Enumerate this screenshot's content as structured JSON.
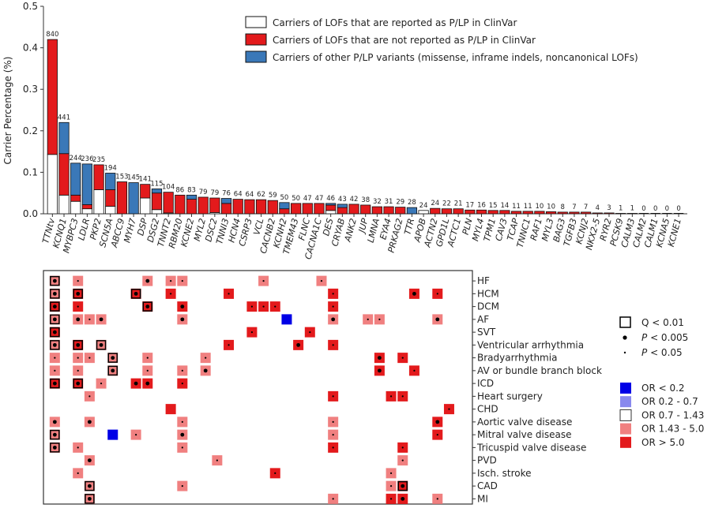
{
  "chart_data": [
    {
      "type": "bar",
      "stacked": true,
      "ylabel": "Carrier Percentage (%)",
      "ylim": [
        0,
        0.5
      ],
      "yticks": [
        "0.0",
        "0.1",
        "0.2",
        "0.3",
        "0.4",
        "0.5"
      ],
      "genes": [
        "TTNtv",
        "KCNQ1",
        "MYBPC3",
        "LDLR",
        "PKP2",
        "SCN5A",
        "ABCC9",
        "MYH7",
        "DSP",
        "DSG2",
        "TNNT2",
        "RBM20",
        "KCNE2",
        "MYL2",
        "DSC2",
        "TNNI3",
        "HCN4",
        "CSRP3",
        "VCL",
        "CACNB2",
        "KCNH2",
        "TMEM43",
        "FLNC",
        "CACNA1C",
        "DES",
        "CRYAB",
        "ANK2",
        "JUP",
        "LMNA",
        "EYA4",
        "PRKAG2",
        "TTR",
        "APOB",
        "ACTN2",
        "GPD1L",
        "ACTC1",
        "PLN",
        "MYL4",
        "TPM1",
        "CAV3",
        "TCAP",
        "TNNC1",
        "RAF1",
        "MYL3",
        "BAG3",
        "TGFB3",
        "KCNJ2",
        "NKX2-5",
        "RYR2",
        "PCSK9",
        "CALM3",
        "CALM2",
        "CALM1",
        "KCNA5",
        "KCNE1"
      ],
      "counts": [
        "840",
        "441",
        "244",
        "236",
        "235",
        "194",
        "153",
        "145",
        "141",
        "115",
        "104",
        "86",
        "83",
        "79",
        "79",
        "76",
        "64",
        "64",
        "62",
        "59",
        "50",
        "50",
        "47",
        "47",
        "46",
        "43",
        "42",
        "38",
        "32",
        "31",
        "29",
        "28",
        "24",
        "24",
        "22",
        "21",
        "17",
        "16",
        "15",
        "14",
        "11",
        "11",
        "10",
        "10",
        "8",
        "7",
        "7",
        "4",
        "3",
        "1",
        "1",
        "0",
        "0",
        "0",
        "0"
      ],
      "series": [
        {
          "name": "Carriers of LOFs that are reported as P/LP in ClinVar",
          "color": "#ffffff",
          "values": [
            0.143,
            0.045,
            0.03,
            0.012,
            0.058,
            0.018,
            0.0,
            0.0,
            0.038,
            0.01,
            0.002,
            0.0,
            0.0,
            0.0,
            0.003,
            0.0,
            0.0,
            0.0,
            0.0,
            0.0,
            0.0,
            0.0,
            0.0,
            0.0,
            0.008,
            0.0,
            0.0,
            0.0,
            0.0,
            0.0,
            0.0,
            0.0,
            0.008,
            0.0,
            0.0,
            0.0,
            0.0,
            0.0,
            0.0,
            0.0,
            0.0,
            0.0,
            0.0,
            0.0,
            0.0,
            0.0,
            0.0,
            0.0,
            0.0,
            0.0,
            0.0,
            0.0,
            0.0,
            0.0,
            0.0
          ]
        },
        {
          "name": "Carriers of LOFs that are not reported as P/LP in ClinVar",
          "color": "#e31a1c",
          "values": [
            0.277,
            0.1,
            0.015,
            0.01,
            0.06,
            0.04,
            0.077,
            0.0,
            0.033,
            0.04,
            0.05,
            0.045,
            0.035,
            0.04,
            0.035,
            0.025,
            0.035,
            0.034,
            0.034,
            0.032,
            0.012,
            0.025,
            0.025,
            0.025,
            0.013,
            0.015,
            0.023,
            0.021,
            0.017,
            0.017,
            0.016,
            0.0,
            0.0,
            0.013,
            0.012,
            0.012,
            0.009,
            0.009,
            0.008,
            0.008,
            0.006,
            0.006,
            0.006,
            0.005,
            0.004,
            0.004,
            0.004,
            0.002,
            0.002,
            0.001,
            0.001,
            0.0,
            0.0,
            0.0,
            0.0
          ]
        },
        {
          "name": "Carriers of other P/LP variants (missense, inframe indels, noncanonical LOFs)",
          "color": "#3a78b8",
          "values": [
            0.0,
            0.075,
            0.077,
            0.098,
            0.0,
            0.04,
            0.0,
            0.075,
            0.0,
            0.01,
            0.0,
            0.0,
            0.01,
            0.0,
            0.0,
            0.012,
            0.0,
            0.0,
            0.0,
            0.0,
            0.015,
            0.0,
            0.0,
            0.0,
            0.004,
            0.008,
            0.0,
            0.0,
            0.0,
            0.0,
            0.0,
            0.015,
            0.0,
            0.0,
            0.0,
            0.0,
            0.0,
            0.0,
            0.0,
            0.0,
            0.0,
            0.0,
            0.0,
            0.0,
            0.0,
            0.0,
            0.0,
            0.0,
            0.0,
            0.0,
            0.0,
            0.0,
            0.0,
            0.0,
            0.0
          ]
        }
      ]
    },
    {
      "type": "heatmap",
      "rows": [
        "HF",
        "HCM",
        "DCM",
        "AF",
        "SVT",
        "Ventricular arrhythmia",
        "Bradyarrhythmia",
        "AV or bundle branch block",
        "ICD",
        "Heart surgery",
        "CHD",
        "Aortic valve disease",
        "Mitral valve disease",
        "Tricuspid valve disease",
        "PVD",
        "Isch. stroke",
        "CAD",
        "MI"
      ],
      "columns_ref": "genes",
      "cell_format": "[column_index, OR category (blue|lightblue|white|pink|red), significance (q|p005|p05|none)]",
      "cells": [
        [
          [
            0,
            "pink",
            "q"
          ],
          [
            2,
            "pink",
            "p05"
          ],
          [
            8,
            "pink",
            "p005"
          ],
          [
            10,
            "pink",
            "p05"
          ],
          [
            11,
            "pink",
            "p05"
          ],
          [
            18,
            "pink",
            "p05"
          ],
          [
            23,
            "pink",
            "p05"
          ]
        ],
        [
          [
            0,
            "pink",
            "q"
          ],
          [
            2,
            "red",
            "q"
          ],
          [
            7,
            "red",
            "q"
          ],
          [
            10,
            "red",
            "p05"
          ],
          [
            15,
            "red",
            "p05"
          ],
          [
            24,
            "red",
            "p05"
          ],
          [
            31,
            "red",
            "p005"
          ],
          [
            33,
            "red",
            "p05"
          ]
        ],
        [
          [
            0,
            "red",
            "q"
          ],
          [
            2,
            "red",
            "p05"
          ],
          [
            8,
            "red",
            "q"
          ],
          [
            11,
            "red",
            "p005"
          ],
          [
            17,
            "red",
            "p05"
          ],
          [
            18,
            "red",
            "p05"
          ],
          [
            19,
            "red",
            "p05"
          ],
          [
            24,
            "red",
            "p05"
          ]
        ],
        [
          [
            0,
            "pink",
            "q"
          ],
          [
            2,
            "pink",
            "p005"
          ],
          [
            3,
            "pink",
            "p05"
          ],
          [
            4,
            "pink",
            "p005"
          ],
          [
            11,
            "pink",
            "p005"
          ],
          [
            20,
            "blue",
            "none"
          ],
          [
            24,
            "pink",
            "p005"
          ],
          [
            27,
            "pink",
            "p05"
          ],
          [
            28,
            "pink",
            "p05"
          ],
          [
            33,
            "pink",
            "p005"
          ]
        ],
        [
          [
            0,
            "red",
            "q"
          ],
          [
            17,
            "red",
            "p05"
          ],
          [
            22,
            "red",
            "p05"
          ]
        ],
        [
          [
            0,
            "pink",
            "q"
          ],
          [
            2,
            "red",
            "q"
          ],
          [
            4,
            "pink",
            "q"
          ],
          [
            15,
            "red",
            "p05"
          ],
          [
            21,
            "red",
            "p005"
          ],
          [
            24,
            "red",
            "p05"
          ]
        ],
        [
          [
            0,
            "pink",
            "p05"
          ],
          [
            2,
            "pink",
            "p05"
          ],
          [
            3,
            "pink",
            "p05"
          ],
          [
            5,
            "pink",
            "q"
          ],
          [
            8,
            "pink",
            "p05"
          ],
          [
            13,
            "pink",
            "p05"
          ],
          [
            28,
            "red",
            "p005"
          ],
          [
            30,
            "red",
            "p05"
          ]
        ],
        [
          [
            0,
            "pink",
            "p05"
          ],
          [
            2,
            "pink",
            "p05"
          ],
          [
            5,
            "pink",
            "q"
          ],
          [
            8,
            "pink",
            "p05"
          ],
          [
            11,
            "pink",
            "p05"
          ],
          [
            13,
            "pink",
            "p005"
          ],
          [
            28,
            "red",
            "p005"
          ],
          [
            31,
            "red",
            "p05"
          ]
        ],
        [
          [
            0,
            "red",
            "q"
          ],
          [
            2,
            "red",
            "q"
          ],
          [
            4,
            "pink",
            "p05"
          ],
          [
            7,
            "red",
            "p005"
          ],
          [
            8,
            "red",
            "p005"
          ],
          [
            11,
            "red",
            "p05"
          ]
        ],
        [
          [
            3,
            "pink",
            "p05"
          ],
          [
            24,
            "red",
            "p05"
          ],
          [
            29,
            "red",
            "p05"
          ],
          [
            30,
            "red",
            "p05"
          ]
        ],
        [
          [
            10,
            "red",
            "none"
          ],
          [
            34,
            "red",
            "p05"
          ]
        ],
        [
          [
            0,
            "pink",
            "p005"
          ],
          [
            3,
            "pink",
            "p005"
          ],
          [
            11,
            "pink",
            "p05"
          ],
          [
            24,
            "pink",
            "p05"
          ],
          [
            33,
            "red",
            "p005"
          ]
        ],
        [
          [
            0,
            "pink",
            "q"
          ],
          [
            5,
            "blue",
            "none"
          ],
          [
            7,
            "pink",
            "p05"
          ],
          [
            11,
            "pink",
            "p005"
          ],
          [
            24,
            "pink",
            "p05"
          ],
          [
            33,
            "red",
            "p05"
          ]
        ],
        [
          [
            0,
            "pink",
            "q"
          ],
          [
            2,
            "pink",
            "p05"
          ],
          [
            11,
            "pink",
            "p05"
          ],
          [
            24,
            "red",
            "p05"
          ],
          [
            30,
            "red",
            "p05"
          ]
        ],
        [
          [
            3,
            "pink",
            "p005"
          ],
          [
            14,
            "pink",
            "p05"
          ],
          [
            30,
            "pink",
            "p05"
          ]
        ],
        [
          [
            2,
            "pink",
            "p05"
          ],
          [
            19,
            "red",
            "p05"
          ],
          [
            29,
            "pink",
            "p05"
          ]
        ],
        [
          [
            3,
            "pink",
            "q"
          ],
          [
            11,
            "pink",
            "p05"
          ],
          [
            29,
            "pink",
            "p05"
          ],
          [
            30,
            "red",
            "q"
          ]
        ],
        [
          [
            3,
            "pink",
            "q"
          ],
          [
            24,
            "pink",
            "p05"
          ],
          [
            29,
            "red",
            "p05"
          ],
          [
            30,
            "red",
            "p005"
          ],
          [
            33,
            "pink",
            "p05"
          ]
        ]
      ],
      "legend_significance": [
        {
          "key": "q",
          "label": "Q < 0.01"
        },
        {
          "key": "p005",
          "label": "P < 0.005"
        },
        {
          "key": "p05",
          "label": "P < 0.05"
        }
      ],
      "legend_or": [
        {
          "key": "blue",
          "label": "OR < 0.2",
          "color": "#0000e6"
        },
        {
          "key": "lightblue",
          "label": "OR 0.2 - 0.7",
          "color": "#8888ee"
        },
        {
          "key": "white",
          "label": "OR 0.7 - 1.43",
          "color": "#ffffff"
        },
        {
          "key": "pink",
          "label": "OR 1.43 - 5.0",
          "color": "#f08080"
        },
        {
          "key": "red",
          "label": "OR > 5.0",
          "color": "#e31a1c"
        }
      ]
    }
  ]
}
